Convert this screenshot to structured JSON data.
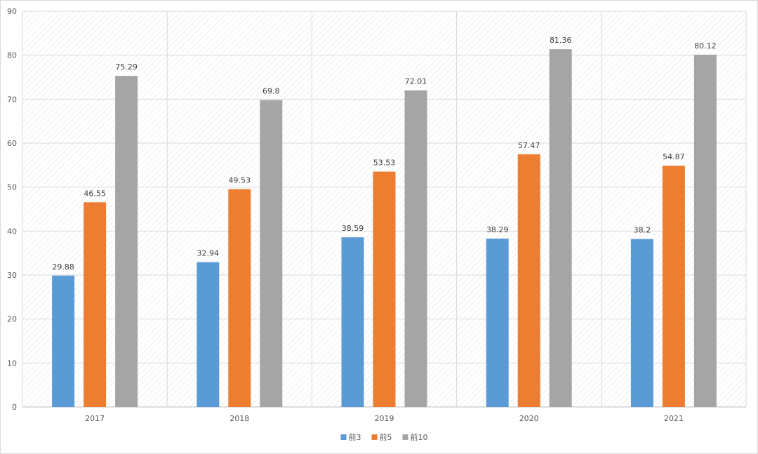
{
  "chart_data": {
    "type": "bar",
    "title": "",
    "xlabel": "",
    "ylabel": "",
    "categories": [
      "2017",
      "2018",
      "2019",
      "2020",
      "2021"
    ],
    "series": [
      {
        "name": "前3",
        "color": "#5b9bd5",
        "values": [
          29.88,
          32.94,
          38.59,
          38.29,
          38.2
        ]
      },
      {
        "name": "前5",
        "color": "#ed7d31",
        "values": [
          46.55,
          49.53,
          53.53,
          57.47,
          54.87
        ]
      },
      {
        "name": "前10",
        "color": "#a5a5a5",
        "values": [
          75.29,
          69.8,
          72.01,
          81.36,
          80.12
        ]
      }
    ],
    "data_labels": [
      [
        "29.88",
        "32.94",
        "38.59",
        "38.29",
        "38.2"
      ],
      [
        "46.55",
        "49.53",
        "53.53",
        "57.47",
        "54.87"
      ],
      [
        "75.29",
        "69.8",
        "72.01",
        "81.36",
        "80.12"
      ]
    ],
    "ylim": [
      0,
      90
    ],
    "yticks": [
      0,
      10,
      20,
      30,
      40,
      50,
      60,
      70,
      80,
      90
    ],
    "ytick_labels": [
      "0",
      "10",
      "20",
      "30",
      "40",
      "50",
      "60",
      "70",
      "80",
      "90"
    ],
    "grid": true,
    "legend_position": "bottom",
    "plot_background": "diagonal-hatch"
  }
}
